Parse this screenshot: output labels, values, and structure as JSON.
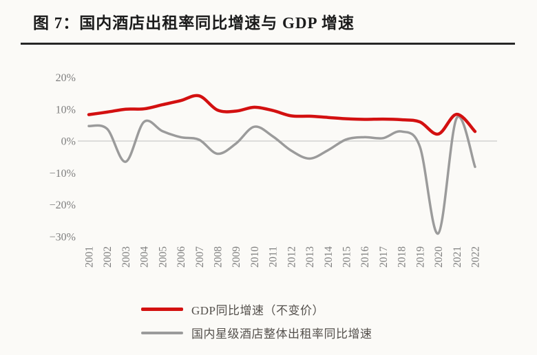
{
  "figure": {
    "title": "图 7：国内酒店出租率同比增速与 GDP 增速"
  },
  "colors": {
    "gdp_line": "#d31010",
    "hotel_line": "#9b9b9b",
    "gridline": "#c9c9c9",
    "tick_text": "#7e7e7e",
    "background": "#fbfaf7",
    "title_text": "#1b1b1b",
    "legend_text": "#54504c"
  },
  "chart_data": {
    "type": "line",
    "title": "图 7：国内酒店出租率同比增速与 GDP 增速",
    "xlabel": "",
    "ylabel": "",
    "categories": [
      "2001",
      "2002",
      "2003",
      "2004",
      "2005",
      "2006",
      "2007",
      "2008",
      "2009",
      "2010",
      "2011",
      "2012",
      "2013",
      "2014",
      "2015",
      "2016",
      "2017",
      "2018",
      "2019",
      "2020",
      "2021",
      "2022"
    ],
    "series": [
      {
        "name": "GDP同比增速（不变价）",
        "color_key": "gdp_line",
        "stroke_width": 4.5,
        "values": [
          8.3,
          9.1,
          10.0,
          10.1,
          11.4,
          12.7,
          14.2,
          9.7,
          9.4,
          10.6,
          9.6,
          7.9,
          7.8,
          7.4,
          7.0,
          6.8,
          6.9,
          6.7,
          6.0,
          2.2,
          8.4,
          3.0
        ]
      },
      {
        "name": "国内星级酒店整体出租率同比增速",
        "color_key": "hotel_line",
        "stroke_width": 3.5,
        "values": [
          4.7,
          3.8,
          -6.5,
          6.0,
          3.1,
          1.2,
          0.4,
          -4.0,
          -0.8,
          4.5,
          1.5,
          -3.0,
          -5.5,
          -2.9,
          0.5,
          1.2,
          0.9,
          3.0,
          -1.8,
          -29.0,
          7.2,
          -8.1
        ]
      }
    ],
    "y_ticks": [
      {
        "value": 20,
        "label": "20%"
      },
      {
        "value": 10,
        "label": "10%"
      },
      {
        "value": 0,
        "label": "0%"
      },
      {
        "value": -10,
        "label": "−10%"
      },
      {
        "value": -20,
        "label": "−20%"
      },
      {
        "value": -30,
        "label": "−30%"
      }
    ],
    "ylim": [
      -32,
      22
    ],
    "grid": "zero-line-only",
    "smoothing": "spline",
    "legend_position": "bottom"
  },
  "legend": {
    "items": [
      {
        "label": "GDP同比增速（不变价）",
        "color_key": "gdp_line",
        "thickness": 5
      },
      {
        "label": "国内星级酒店整体出租率同比增速",
        "color_key": "hotel_line",
        "thickness": 4
      }
    ]
  }
}
